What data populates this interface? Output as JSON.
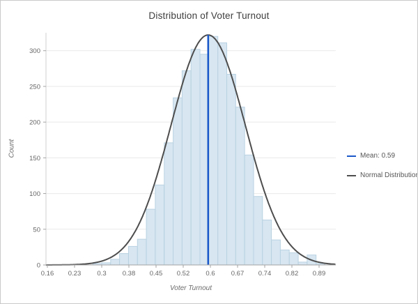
{
  "window": {
    "border_color": "#c9c9c9",
    "background": "#ffffff"
  },
  "chart_data": {
    "type": "histogram",
    "title": "Distribution of Voter Turnout",
    "xlabel": "Voter Turnout",
    "ylabel": "Count",
    "x_ticks": [
      {
        "label": "0.16",
        "value": 0.16
      },
      {
        "label": "0.23",
        "value": 0.233
      },
      {
        "label": "0.3",
        "value": 0.306
      },
      {
        "label": "0.38",
        "value": 0.379
      },
      {
        "label": "0.45",
        "value": 0.452
      },
      {
        "label": "0.52",
        "value": 0.525
      },
      {
        "label": "0.6",
        "value": 0.598
      },
      {
        "label": "0.67",
        "value": 0.671
      },
      {
        "label": "0.74",
        "value": 0.744
      },
      {
        "label": "0.82",
        "value": 0.817
      },
      {
        "label": "0.89",
        "value": 0.89
      }
    ],
    "y_ticks": [
      0,
      50,
      100,
      150,
      200,
      250,
      300
    ],
    "xlim": [
      0.156,
      0.935
    ],
    "ylim": [
      0,
      325
    ],
    "grid": true,
    "legend_position": "right",
    "bins": {
      "start": 0.282,
      "width": 0.024,
      "counts": [
        2,
        3,
        8,
        16,
        26,
        36,
        78,
        112,
        171,
        234,
        272,
        302,
        295,
        320,
        311,
        267,
        221,
        154,
        96,
        63,
        35,
        21,
        17,
        4,
        14,
        2
      ]
    },
    "series": [
      {
        "name": "Mean: 0.59",
        "type": "vline",
        "x": 0.592,
        "color": "#1a57c9"
      },
      {
        "name": "Normal Distribution",
        "type": "normal_curve",
        "mu": 0.592,
        "sigma": 0.1,
        "peak": 322,
        "color": "#4d4d4d"
      }
    ],
    "style": {
      "bar_fill": "#d7e6f1",
      "bar_stroke": "#b9d2e2",
      "gridline_color": "#e9e9e9",
      "x_axis_color": "#a3a3a3",
      "y_axis_color": "#d0d0d0",
      "tick_label_color": "#666666"
    }
  }
}
